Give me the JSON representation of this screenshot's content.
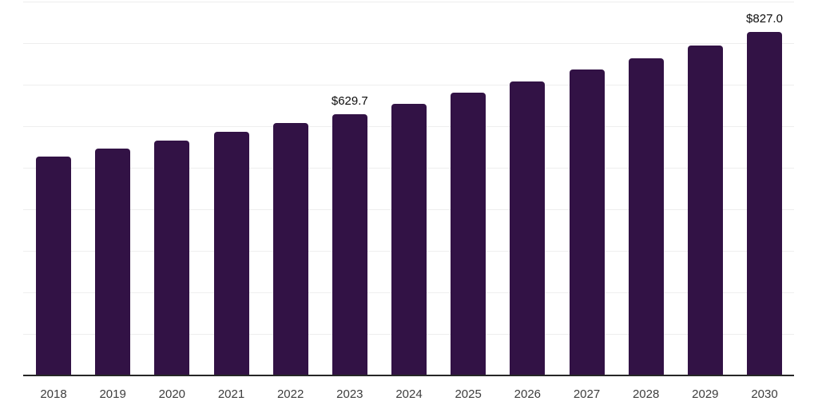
{
  "chart_data": {
    "type": "bar",
    "title": "",
    "xlabel": "",
    "ylabel": "",
    "categories": [
      "2018",
      "2019",
      "2020",
      "2021",
      "2022",
      "2023",
      "2024",
      "2025",
      "2026",
      "2027",
      "2028",
      "2029",
      "2030"
    ],
    "values": [
      527,
      547,
      566,
      586,
      608,
      629.7,
      654,
      681,
      708,
      737,
      764,
      795,
      827
    ],
    "annotations": [
      {
        "category": "2023",
        "text": "$629.7"
      },
      {
        "category": "2030",
        "text": "$827.0"
      }
    ],
    "ylim": [
      0,
      900
    ],
    "grid_step": 100,
    "grid": "horizontal-only",
    "legend": "none",
    "colors": {
      "bar": "#321245",
      "gridline": "#eeeeee",
      "axis_line": "#262626",
      "value_label": "#0d0d0d",
      "tick_label": "#3d3d3d",
      "background": "#ffffff"
    }
  }
}
